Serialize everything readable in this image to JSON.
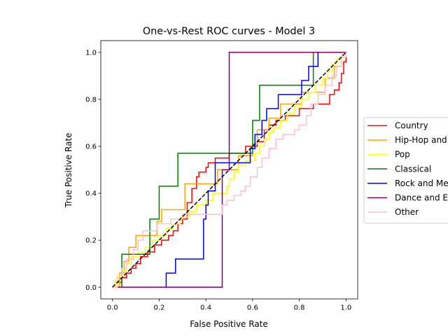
{
  "chart_data": {
    "type": "line",
    "title": "One-vs-Rest ROC curves - Model 3",
    "xlabel": "False Positive Rate",
    "ylabel": "True Positive Rate",
    "xlim": [
      -0.05,
      1.05
    ],
    "ylim": [
      -0.05,
      1.05
    ],
    "xticks": [
      "0.0",
      "0.2",
      "0.4",
      "0.6",
      "0.8",
      "1.0"
    ],
    "yticks": [
      "0.0",
      "0.2",
      "0.4",
      "0.6",
      "0.8",
      "1.0"
    ],
    "grid": false,
    "legend_position": "center-right (outside, clipped)",
    "diagonal": {
      "style": "dashed",
      "color": "#000000",
      "points": [
        [
          0,
          0
        ],
        [
          1,
          1
        ]
      ]
    },
    "series": [
      {
        "name": "Country",
        "color": "#ff0000",
        "points": [
          [
            0,
            0
          ],
          [
            0.02,
            0
          ],
          [
            0.02,
            0.02
          ],
          [
            0.04,
            0.02
          ],
          [
            0.04,
            0.04
          ],
          [
            0.06,
            0.04
          ],
          [
            0.06,
            0.06
          ],
          [
            0.08,
            0.06
          ],
          [
            0.08,
            0.08
          ],
          [
            0.1,
            0.08
          ],
          [
            0.1,
            0.1
          ],
          [
            0.12,
            0.1
          ],
          [
            0.12,
            0.13
          ],
          [
            0.15,
            0.13
          ],
          [
            0.15,
            0.15
          ],
          [
            0.18,
            0.15
          ],
          [
            0.18,
            0.18
          ],
          [
            0.21,
            0.18
          ],
          [
            0.21,
            0.2
          ],
          [
            0.24,
            0.2
          ],
          [
            0.24,
            0.22
          ],
          [
            0.26,
            0.22
          ],
          [
            0.26,
            0.24
          ],
          [
            0.28,
            0.24
          ],
          [
            0.28,
            0.27
          ],
          [
            0.3,
            0.27
          ],
          [
            0.3,
            0.29
          ],
          [
            0.32,
            0.29
          ],
          [
            0.32,
            0.36
          ],
          [
            0.34,
            0.36
          ],
          [
            0.34,
            0.42
          ],
          [
            0.36,
            0.42
          ],
          [
            0.36,
            0.47
          ],
          [
            0.37,
            0.47
          ],
          [
            0.37,
            0.49
          ],
          [
            0.4,
            0.49
          ],
          [
            0.4,
            0.51
          ],
          [
            0.41,
            0.51
          ],
          [
            0.41,
            0.53
          ],
          [
            0.44,
            0.53
          ],
          [
            0.44,
            0.55
          ],
          [
            0.5,
            0.55
          ],
          [
            0.5,
            0.57
          ],
          [
            0.57,
            0.57
          ],
          [
            0.57,
            0.6
          ],
          [
            0.62,
            0.6
          ],
          [
            0.62,
            0.62
          ],
          [
            0.65,
            0.62
          ],
          [
            0.65,
            0.67
          ],
          [
            0.67,
            0.67
          ],
          [
            0.67,
            0.69
          ],
          [
            0.7,
            0.69
          ],
          [
            0.7,
            0.71
          ],
          [
            0.74,
            0.71
          ],
          [
            0.74,
            0.73
          ],
          [
            0.8,
            0.73
          ],
          [
            0.8,
            0.76
          ],
          [
            0.86,
            0.76
          ],
          [
            0.86,
            0.78
          ],
          [
            0.93,
            0.78
          ],
          [
            0.93,
            0.82
          ],
          [
            0.95,
            0.82
          ],
          [
            0.95,
            0.84
          ],
          [
            0.97,
            0.84
          ],
          [
            0.97,
            0.87
          ],
          [
            0.98,
            0.87
          ],
          [
            0.98,
            0.91
          ],
          [
            0.99,
            0.91
          ],
          [
            0.99,
            0.96
          ],
          [
            1.0,
            0.96
          ],
          [
            1.0,
            1.0
          ]
        ]
      },
      {
        "name": "Hip-Hop and Rap",
        "color": "#ffa500",
        "points": [
          [
            0,
            0
          ],
          [
            0.03,
            0
          ],
          [
            0.03,
            0.06
          ],
          [
            0.05,
            0.06
          ],
          [
            0.05,
            0.11
          ],
          [
            0.07,
            0.11
          ],
          [
            0.07,
            0.17
          ],
          [
            0.1,
            0.17
          ],
          [
            0.1,
            0.22
          ],
          [
            0.19,
            0.22
          ],
          [
            0.19,
            0.28
          ],
          [
            0.21,
            0.28
          ],
          [
            0.21,
            0.33
          ],
          [
            0.31,
            0.33
          ],
          [
            0.31,
            0.39
          ],
          [
            0.31,
            0.39
          ],
          [
            0.31,
            0.44
          ],
          [
            0.45,
            0.44
          ],
          [
            0.45,
            0.5
          ],
          [
            0.54,
            0.5
          ],
          [
            0.54,
            0.56
          ],
          [
            0.6,
            0.56
          ],
          [
            0.6,
            0.61
          ],
          [
            0.62,
            0.61
          ],
          [
            0.62,
            0.67
          ],
          [
            0.67,
            0.67
          ],
          [
            0.67,
            0.72
          ],
          [
            0.72,
            0.72
          ],
          [
            0.72,
            0.78
          ],
          [
            0.81,
            0.78
          ],
          [
            0.81,
            0.83
          ],
          [
            0.91,
            0.83
          ],
          [
            0.91,
            0.89
          ],
          [
            0.95,
            0.89
          ],
          [
            0.95,
            0.94
          ],
          [
            0.98,
            0.94
          ],
          [
            0.98,
            1.0
          ],
          [
            1.0,
            1.0
          ]
        ]
      },
      {
        "name": "Pop",
        "color": "#ffff00",
        "points": [
          [
            0,
            0
          ],
          [
            0.01,
            0
          ],
          [
            0.01,
            0.03
          ],
          [
            0.02,
            0.03
          ],
          [
            0.02,
            0.05
          ],
          [
            0.04,
            0.05
          ],
          [
            0.04,
            0.07
          ],
          [
            0.06,
            0.07
          ],
          [
            0.06,
            0.1
          ],
          [
            0.08,
            0.1
          ],
          [
            0.08,
            0.13
          ],
          [
            0.11,
            0.13
          ],
          [
            0.11,
            0.15
          ],
          [
            0.14,
            0.15
          ],
          [
            0.14,
            0.17
          ],
          [
            0.17,
            0.17
          ],
          [
            0.17,
            0.2
          ],
          [
            0.2,
            0.2
          ],
          [
            0.2,
            0.22
          ],
          [
            0.23,
            0.22
          ],
          [
            0.23,
            0.25
          ],
          [
            0.26,
            0.25
          ],
          [
            0.26,
            0.27
          ],
          [
            0.29,
            0.27
          ],
          [
            0.29,
            0.3
          ],
          [
            0.33,
            0.3
          ],
          [
            0.33,
            0.32
          ],
          [
            0.36,
            0.32
          ],
          [
            0.36,
            0.35
          ],
          [
            0.4,
            0.35
          ],
          [
            0.4,
            0.37
          ],
          [
            0.43,
            0.37
          ],
          [
            0.43,
            0.4
          ],
          [
            0.49,
            0.4
          ],
          [
            0.49,
            0.43
          ],
          [
            0.5,
            0.43
          ],
          [
            0.5,
            0.46
          ],
          [
            0.52,
            0.46
          ],
          [
            0.52,
            0.49
          ],
          [
            0.54,
            0.49
          ],
          [
            0.54,
            0.52
          ],
          [
            0.57,
            0.52
          ],
          [
            0.57,
            0.54
          ],
          [
            0.61,
            0.54
          ],
          [
            0.61,
            0.57
          ],
          [
            0.63,
            0.57
          ],
          [
            0.63,
            0.6
          ],
          [
            0.65,
            0.6
          ],
          [
            0.65,
            0.63
          ],
          [
            0.67,
            0.63
          ],
          [
            0.67,
            0.66
          ],
          [
            0.69,
            0.66
          ],
          [
            0.69,
            0.68
          ],
          [
            0.72,
            0.68
          ],
          [
            0.72,
            0.71
          ],
          [
            0.75,
            0.71
          ],
          [
            0.75,
            0.74
          ],
          [
            0.78,
            0.74
          ],
          [
            0.78,
            0.77
          ],
          [
            0.81,
            0.77
          ],
          [
            0.81,
            0.8
          ],
          [
            0.84,
            0.8
          ],
          [
            0.84,
            0.83
          ],
          [
            0.87,
            0.83
          ],
          [
            0.87,
            0.86
          ],
          [
            0.9,
            0.86
          ],
          [
            0.9,
            0.89
          ],
          [
            0.92,
            0.89
          ],
          [
            0.92,
            0.92
          ],
          [
            0.94,
            0.92
          ],
          [
            0.94,
            0.95
          ],
          [
            0.96,
            0.95
          ],
          [
            0.96,
            0.97
          ],
          [
            0.98,
            0.97
          ],
          [
            0.98,
            1.0
          ],
          [
            1.0,
            1.0
          ]
        ]
      },
      {
        "name": "Classical",
        "color": "#008000",
        "points": [
          [
            0,
            0
          ],
          [
            0.04,
            0
          ],
          [
            0.04,
            0.14
          ],
          [
            0.16,
            0.14
          ],
          [
            0.16,
            0.29
          ],
          [
            0.2,
            0.29
          ],
          [
            0.2,
            0.43
          ],
          [
            0.28,
            0.43
          ],
          [
            0.28,
            0.57
          ],
          [
            0.6,
            0.57
          ],
          [
            0.6,
            0.71
          ],
          [
            0.63,
            0.71
          ],
          [
            0.63,
            0.86
          ],
          [
            0.86,
            0.86
          ],
          [
            0.86,
            1.0
          ],
          [
            1.0,
            1.0
          ]
        ]
      },
      {
        "name": "Rock and Metal",
        "color": "#0000ff",
        "points": [
          [
            0,
            0
          ],
          [
            0.23,
            0
          ],
          [
            0.23,
            0.06
          ],
          [
            0.27,
            0.06
          ],
          [
            0.27,
            0.12
          ],
          [
            0.39,
            0.12
          ],
          [
            0.39,
            0.29
          ],
          [
            0.4,
            0.29
          ],
          [
            0.4,
            0.35
          ],
          [
            0.41,
            0.35
          ],
          [
            0.41,
            0.41
          ],
          [
            0.44,
            0.41
          ],
          [
            0.44,
            0.47
          ],
          [
            0.44,
            0.47
          ],
          [
            0.44,
            0.53
          ],
          [
            0.59,
            0.53
          ],
          [
            0.59,
            0.59
          ],
          [
            0.61,
            0.59
          ],
          [
            0.61,
            0.65
          ],
          [
            0.64,
            0.65
          ],
          [
            0.64,
            0.71
          ],
          [
            0.66,
            0.71
          ],
          [
            0.66,
            0.76
          ],
          [
            0.71,
            0.76
          ],
          [
            0.71,
            0.82
          ],
          [
            0.81,
            0.82
          ],
          [
            0.81,
            0.88
          ],
          [
            0.84,
            0.88
          ],
          [
            0.84,
            0.94
          ],
          [
            0.88,
            0.94
          ],
          [
            0.88,
            1.0
          ],
          [
            1.0,
            1.0
          ]
        ]
      },
      {
        "name": "Dance and Electronic",
        "color": "#800080",
        "points": [
          [
            0,
            0
          ],
          [
            0.47,
            0
          ],
          [
            0.47,
            0.5
          ],
          [
            0.5,
            0.5
          ],
          [
            0.5,
            1.0
          ],
          [
            1.0,
            1.0
          ]
        ]
      },
      {
        "name": "Other",
        "color": "#ffc0cb",
        "points": [
          [
            0,
            0
          ],
          [
            0.02,
            0
          ],
          [
            0.02,
            0.04
          ],
          [
            0.04,
            0.04
          ],
          [
            0.04,
            0.08
          ],
          [
            0.06,
            0.08
          ],
          [
            0.06,
            0.12
          ],
          [
            0.09,
            0.12
          ],
          [
            0.09,
            0.16
          ],
          [
            0.11,
            0.16
          ],
          [
            0.11,
            0.2
          ],
          [
            0.13,
            0.2
          ],
          [
            0.13,
            0.24
          ],
          [
            0.19,
            0.24
          ],
          [
            0.19,
            0.27
          ],
          [
            0.25,
            0.27
          ],
          [
            0.25,
            0.29
          ],
          [
            0.3,
            0.29
          ],
          [
            0.3,
            0.31
          ],
          [
            0.47,
            0.31
          ],
          [
            0.47,
            0.35
          ],
          [
            0.49,
            0.35
          ],
          [
            0.49,
            0.37
          ],
          [
            0.52,
            0.37
          ],
          [
            0.52,
            0.39
          ],
          [
            0.55,
            0.39
          ],
          [
            0.55,
            0.41
          ],
          [
            0.57,
            0.41
          ],
          [
            0.57,
            0.43
          ],
          [
            0.59,
            0.43
          ],
          [
            0.59,
            0.47
          ],
          [
            0.62,
            0.47
          ],
          [
            0.62,
            0.51
          ],
          [
            0.64,
            0.51
          ],
          [
            0.64,
            0.55
          ],
          [
            0.67,
            0.55
          ],
          [
            0.67,
            0.59
          ],
          [
            0.7,
            0.59
          ],
          [
            0.7,
            0.63
          ],
          [
            0.73,
            0.63
          ],
          [
            0.73,
            0.65
          ],
          [
            0.78,
            0.65
          ],
          [
            0.78,
            0.67
          ],
          [
            0.8,
            0.67
          ],
          [
            0.8,
            0.69
          ],
          [
            0.83,
            0.69
          ],
          [
            0.83,
            0.73
          ],
          [
            0.85,
            0.73
          ],
          [
            0.85,
            0.78
          ],
          [
            0.88,
            0.78
          ],
          [
            0.88,
            0.82
          ],
          [
            0.91,
            0.82
          ],
          [
            0.91,
            0.86
          ],
          [
            0.94,
            0.86
          ],
          [
            0.94,
            0.9
          ],
          [
            0.96,
            0.9
          ],
          [
            0.96,
            0.94
          ],
          [
            0.98,
            0.94
          ],
          [
            0.98,
            0.98
          ],
          [
            1.0,
            0.98
          ],
          [
            1.0,
            1.0
          ]
        ]
      }
    ]
  }
}
